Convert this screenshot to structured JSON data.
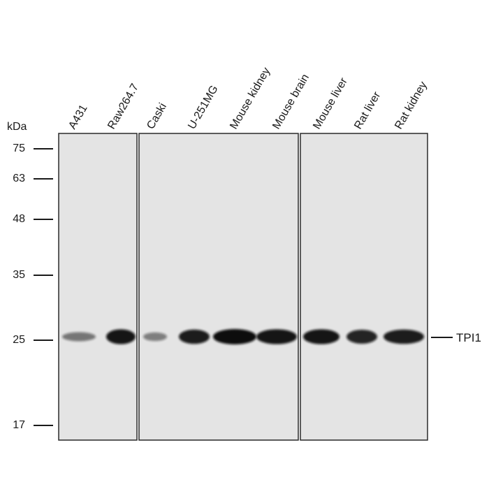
{
  "unit_label": "kDa",
  "target_label": "TPI1",
  "lanes": [
    {
      "label": "A431",
      "intensity": 0.35
    },
    {
      "label": "Raw264.7",
      "intensity": 0.95
    },
    {
      "label": "Caski",
      "intensity": 0.3
    },
    {
      "label": "U-251MG",
      "intensity": 0.9
    },
    {
      "label": "Mouse kidney",
      "intensity": 1.0
    },
    {
      "label": "Mouse brain",
      "intensity": 0.95
    },
    {
      "label": "Mouse liver",
      "intensity": 0.95
    },
    {
      "label": "Rat liver",
      "intensity": 0.85
    },
    {
      "label": "Rat kidney",
      "intensity": 0.9
    }
  ],
  "markers": [
    {
      "label": "75"
    },
    {
      "label": "63"
    },
    {
      "label": "48"
    },
    {
      "label": "35"
    },
    {
      "label": "25"
    },
    {
      "label": "17"
    }
  ],
  "colors": {
    "membrane": "#e4e4e4",
    "band": "#111111",
    "frame": "#2a2a2a"
  }
}
